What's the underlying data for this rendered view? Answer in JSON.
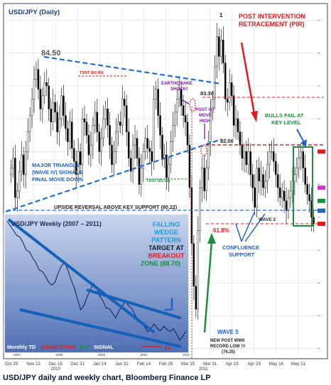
{
  "caption": "USD/JPY daily and weekly chart, Bloomberg Finance LP",
  "colors": {
    "panel_bg": "#ffffff",
    "frame": "#4a4a4a",
    "grid": "#d9d9d9",
    "trend_blue": "#1f6fc7",
    "annot_red": "#e31a1c",
    "annot_green": "#1a8f3c",
    "annot_blue": "#1f62c4",
    "candle_up": "#ffffff",
    "candle_down": "#000000",
    "inset_bg_top": "#c9d6ee",
    "inset_bg_bottom": "#4f6fb4"
  },
  "chart_data": [
    {
      "type": "candlestick",
      "title": "USD/JPY (Daily)",
      "x_tick_labels": [
        "Oct 29",
        "Nov 15",
        "Dec 15",
        "Dec 31",
        "Jan 14",
        "Jan 31",
        "Feb 14",
        "Feb 28",
        "Mar 15",
        "Mar 31",
        "Apr 15",
        "Apr 29",
        "May 16",
        "May 31"
      ],
      "x_year_labels": [
        "2010",
        "2011"
      ],
      "ylim": [
        75.8,
        86.4
      ],
      "close_path": [
        81.5,
        81.8,
        80.6,
        80.8,
        81.4,
        81.9,
        81.3,
        82.0,
        82.6,
        83.1,
        83.6,
        84.2,
        84.5,
        83.9,
        83.3,
        83.7,
        84.1,
        84.0,
        83.3,
        82.9,
        83.5,
        83.2,
        82.6,
        83.0,
        83.7,
        83.1,
        82.7,
        82.3,
        82.9,
        82.1,
        81.7,
        81.3,
        82.0,
        81.6,
        83.0,
        82.9,
        82.5,
        81.9,
        82.2,
        82.8,
        83.2,
        82.6,
        82.0,
        82.4,
        83.0,
        83.3,
        82.8,
        82.2,
        81.6,
        82.0,
        82.6,
        82.9,
        82.8,
        83.6,
        83.4,
        82.6,
        81.8,
        81.4,
        82.2,
        82.4,
        81.8,
        81.0,
        81.5,
        82.0,
        82.4,
        82.1,
        82.0,
        81.7,
        83.6,
        83.9,
        83.1,
        82.5,
        81.8,
        81.9,
        81.2,
        81.6,
        82.3,
        82.8,
        83.2,
        83.6,
        83.9,
        83.4,
        83.1,
        82.9,
        82.2,
        80.9,
        79.2,
        77.9,
        77.2,
        79.6,
        80.9,
        81.5,
        80.8,
        81.5,
        82.3,
        83.2,
        83.6,
        84.6,
        85.5,
        84.9,
        85.4,
        84.7,
        83.6,
        83.5,
        84.1,
        83.7,
        82.8,
        83.0,
        82.6,
        82.2,
        81.8,
        82.0,
        81.6,
        82.0,
        81.3,
        80.9,
        80.3,
        81.5,
        81.1,
        81.3,
        80.9,
        81.1,
        81.6,
        82.0,
        82.0,
        81.7,
        81.3,
        80.9,
        80.6,
        80.8,
        80.5,
        80.2,
        80.6,
        80.8,
        81.1,
        81.3,
        81.5,
        81.8,
        82.0,
        81.5,
        81.0,
        80.7,
        80.5,
        80.0,
        79.8
      ],
      "annotations": [
        {
          "text": "84.50",
          "value": 84.5
        },
        {
          "text": "TDST (83.90)",
          "value": 83.9
        },
        {
          "text": "EARTHQUAKE",
          "line": 1
        },
        {
          "text": "SHOCK!",
          "line": 2
        },
        {
          "text": "83.30",
          "value": 83.3
        },
        {
          "text": "POST G7",
          "line": 1
        },
        {
          "text": "MOVE",
          "line": 2
        },
        {
          "text": "HIGH",
          "line": 3
        },
        {
          "text": "82.00",
          "value": 82.0
        },
        {
          "text": "MAJOR TRIANGLE",
          "line": 1
        },
        {
          "text": "(WAVE IV) SIGNALS",
          "line": 2
        },
        {
          "text": "FINAL MOVE DOWN",
          "line": 3
        },
        {
          "text": "TDST (81.15)",
          "value": 81.15
        },
        {
          "text": "UPSIDE REVERSAL ABOVE  KEY SUPPORT (80.22)",
          "value": 80.22
        },
        {
          "text": "1"
        },
        {
          "text": "POST INTERVENTION",
          "line": 1
        },
        {
          "text": "RETRACEMENT (PIR)",
          "line": 2
        },
        {
          "text": "BULLS FAIL AT",
          "line": 1
        },
        {
          "text": "KEY LEVEL",
          "line": 2
        },
        {
          "text": "61.8%"
        },
        {
          "text": "WAVE 2"
        },
        {
          "text": "CONFLUENCE",
          "line": 1
        },
        {
          "text": "SUPPORT",
          "line": 2
        },
        {
          "text": "WAVE 5"
        },
        {
          "text": "NEW POST WWII",
          "line": 1
        },
        {
          "text": "RECORD LOW !!!",
          "line": 2
        },
        {
          "text": "(76.25)",
          "value": 76.25
        }
      ]
    },
    {
      "type": "line",
      "title": "USD/JPY Weekly (2007 – 2011)",
      "x_tick_labels": [
        "2007",
        "2008",
        "2009",
        "2010",
        "2011"
      ],
      "series": [
        {
          "values": [
            124.0,
            122.5,
            121.0,
            119.5,
            118.0,
            116.0,
            113.5,
            112.0,
            110.0,
            108.5,
            106.0,
            104.5,
            103.0,
            101.0,
            99.0,
            100.5,
            104.5,
            107.5,
            108.0,
            105.5,
            102.0,
            98.0,
            94.0,
            90.0,
            92.0,
            94.5,
            97.5,
            100.5,
            98.0,
            95.0,
            93.5,
            91.0,
            90.0,
            88.5,
            87.0,
            89.0,
            91.0,
            93.5,
            92.0,
            90.0,
            88.0,
            86.0,
            84.5,
            83.0,
            81.5,
            83.0,
            84.0,
            82.5,
            82.0,
            83.0,
            82.0,
            81.5,
            83.0,
            80.0,
            78.0,
            80.0,
            81.0
          ]
        }
      ],
      "annotations": [
        {
          "text": "FALLING",
          "line": 1
        },
        {
          "text": "WEDGE",
          "line": 2
        },
        {
          "text": "PATTERN",
          "line": 3
        },
        {
          "text": "TARGET AT",
          "line": 4
        },
        {
          "text": "BREAKOUT",
          "line": 5
        },
        {
          "text": "ZONE (88.70)",
          "line": 6,
          "value": 88.7
        },
        {
          "text": "Monthly TD",
          "part": 1
        },
        {
          "text": "EXHAUSTION",
          "part": 2
        },
        {
          "text": "BUY",
          "part": 3
        },
        {
          "text": "SIGNAL",
          "part": 4
        },
        {
          "text": "13"
        }
      ]
    }
  ]
}
